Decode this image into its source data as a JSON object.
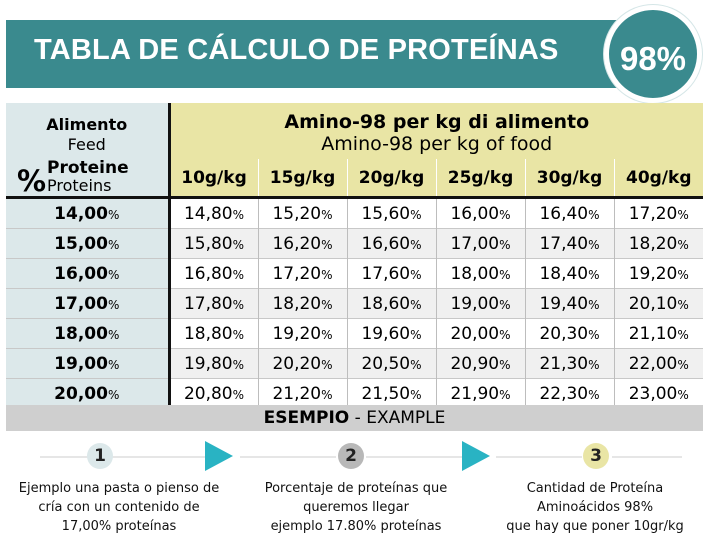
{
  "banner": {
    "title": "TABLA DE CÁLCULO DE PROTEÍNAS",
    "badge": "98%"
  },
  "table": {
    "corner": {
      "feed_it": "Alimento",
      "feed_en": "Feed",
      "pct_symbol": "%",
      "protein_it": "Proteine",
      "protein_en": "Proteins"
    },
    "header_it": "Amino-98 per kg di alimento",
    "header_en": "Amino-98 per kg of food",
    "columns": [
      "10g/kg",
      "15g/kg",
      "20g/kg",
      "25g/kg",
      "30g/kg",
      "40g/kg"
    ],
    "unit": "%",
    "rows": [
      {
        "protein": "14,00",
        "values": [
          "14,80",
          "15,20",
          "15,60",
          "16,00",
          "16,40",
          "17,20"
        ]
      },
      {
        "protein": "15,00",
        "values": [
          "15,80",
          "16,20",
          "16,60",
          "17,00",
          "17,40",
          "18,20"
        ]
      },
      {
        "protein": "16,00",
        "values": [
          "16,80",
          "17,20",
          "17,60",
          "18,00",
          "18,40",
          "19,20"
        ]
      },
      {
        "protein": "17,00",
        "values": [
          "17,80",
          "18,20",
          "18,60",
          "19,00",
          "19,40",
          "20,10"
        ]
      },
      {
        "protein": "18,00",
        "values": [
          "18,80",
          "19,20",
          "19,60",
          "20,00",
          "20,30",
          "21,10"
        ]
      },
      {
        "protein": "19,00",
        "values": [
          "19,80",
          "20,20",
          "20,50",
          "20,90",
          "21,30",
          "22,00"
        ]
      },
      {
        "protein": "20,00",
        "values": [
          "20,80",
          "21,20",
          "21,50",
          "21,90",
          "22,30",
          "23,00"
        ]
      }
    ]
  },
  "example": {
    "label_bold": "ESEMPIO",
    "label_rest": " - EXAMPLE"
  },
  "steps": [
    {
      "number": "1",
      "lines": [
        "Ejemplo una pasta o pienso de",
        "cría con un contenido de",
        "17,00% proteínas"
      ]
    },
    {
      "number": "2",
      "lines": [
        "Porcentaje de proteínas que",
        "queremos llegar",
        "ejemplo 17.80% proteínas"
      ]
    },
    {
      "number": "3",
      "lines": [
        "Cantidad de Proteína",
        "Aminoácidos 98%",
        "que hay que poner 10gr/kg"
      ]
    }
  ],
  "colors": {
    "teal": "#3a8a8e",
    "pale_blue": "#dce8ea",
    "pale_yellow": "#e9e5a5",
    "arrow": "#29b3c3",
    "example_bar": "#cfcfcf"
  }
}
